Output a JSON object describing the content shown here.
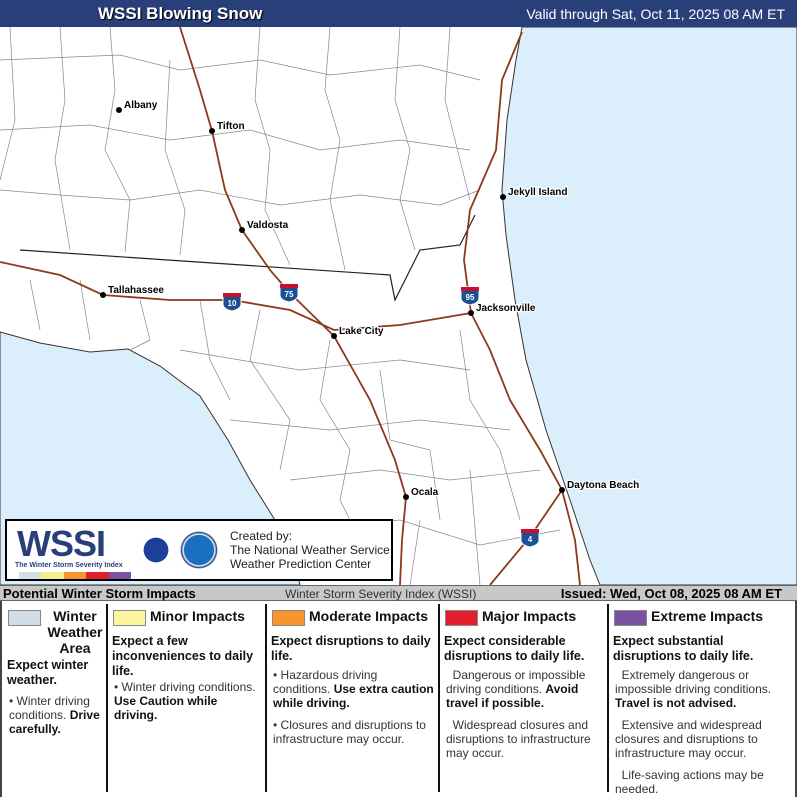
{
  "header": {
    "title": "WSSI Blowing Snow",
    "valid": "Valid through Sat, Oct 11, 2025 08 AM ET",
    "color": "#283f7a"
  },
  "map": {
    "water_color": "#dbeefb",
    "road_color": "#8b3a1a",
    "cities": [
      {
        "name": "Albany"
      },
      {
        "name": "Tifton"
      },
      {
        "name": "Valdosta"
      },
      {
        "name": "Tallahassee"
      },
      {
        "name": "Lake City"
      },
      {
        "name": "Jacksonville"
      },
      {
        "name": "Jekyll Island"
      },
      {
        "name": "Ocala"
      },
      {
        "name": "Daytona Beach"
      }
    ],
    "interstates": [
      "10",
      "75",
      "95",
      "4"
    ]
  },
  "logo": {
    "wordmark": "WSSI",
    "subtitle": "The Winter Storm Severity Index",
    "created_by": "Created by:",
    "org1": "The National Weather Service",
    "org2": "Weather Prediction Center",
    "seal1": "NATIONAL WEATHER SERVICE",
    "seal2": "NOAA"
  },
  "bottom_bar": {
    "left": "Potential Winter Storm Impacts",
    "center": "Winter Storm Severity Index (WSSI)",
    "right": "Issued: Wed, Oct 08, 2025 08 AM ET"
  },
  "legend": [
    {
      "title": "Winter Weather Area",
      "color": "#d3dde6",
      "headline": "Expect winter weather.",
      "bullets": [
        {
          "text": "Winter driving conditions.",
          "bold": "Drive carefully."
        }
      ]
    },
    {
      "title": "Minor Impacts",
      "color": "#fbf59e",
      "headline": "Expect a few inconveniences to daily life.",
      "bullets": [
        {
          "text": "Winter driving conditions.",
          "bold": "Use Caution while driving."
        }
      ]
    },
    {
      "title": "Moderate Impacts",
      "color": "#f7962f",
      "headline": "Expect disruptions to daily life.",
      "bullets": [
        {
          "text": "Hazardous driving conditions.",
          "bold": "Use extra caution while driving."
        },
        {
          "text": "Closures and disruptions to infrastructure may occur.",
          "bold": ""
        }
      ]
    },
    {
      "title": "Major Impacts",
      "color": "#e41e2a",
      "headline": "Expect considerable disruptions to daily life.",
      "bullets": [
        {
          "text": "Dangerous or impossible driving conditions.",
          "bold": "Avoid travel if possible."
        },
        {
          "text": "Widespread closures and disruptions to infrastructure may occur.",
          "bold": ""
        }
      ]
    },
    {
      "title": "Extreme Impacts",
      "color": "#7b52a1",
      "headline": "Expect substantial disruptions to daily life.",
      "bullets": [
        {
          "text": "Extremely dangerous or impossible driving conditions.",
          "bold": "Travel is not advised."
        },
        {
          "text": "Extensive and widespread closures and disruptions to infrastructure may occur.",
          "bold": ""
        },
        {
          "text": "Life-saving actions may be needed.",
          "bold": ""
        }
      ]
    }
  ]
}
